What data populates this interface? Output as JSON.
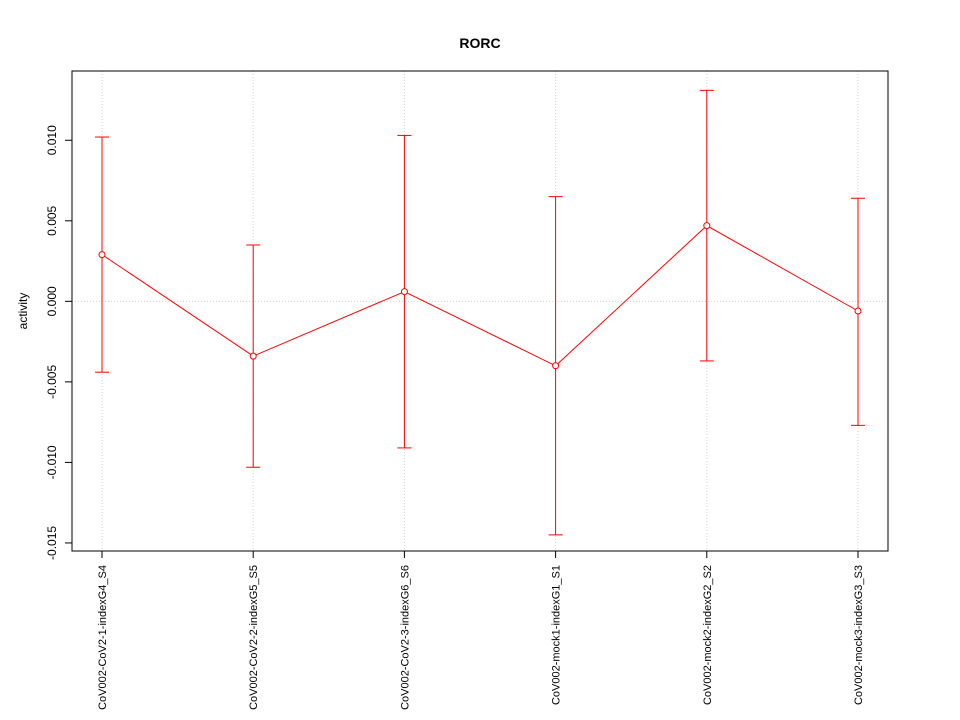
{
  "chart_data": {
    "type": "line",
    "title": "RORC",
    "xlabel": "",
    "ylabel": "activity",
    "categories": [
      "CoV002-CoV2-1-indexG4_S4",
      "CoV002-CoV2-2-indexG5_S5",
      "CoV002-CoV2-3-indexG6_S6",
      "CoV002-mock1-indexG1_S1",
      "CoV002-mock2-indexG2_S2",
      "CoV002-mock3-indexG3_S3"
    ],
    "series": [
      {
        "values": [
          0.0029,
          -0.0034,
          0.0006,
          -0.004,
          0.0047,
          -0.0006
        ],
        "lower": [
          -0.0044,
          -0.0103,
          -0.0091,
          -0.0145,
          -0.0037,
          -0.0077
        ],
        "upper": [
          0.0102,
          0.0035,
          0.0103,
          0.0065,
          0.0131,
          0.0064
        ],
        "color": "#ff0000"
      }
    ],
    "yticks": [
      -0.015,
      -0.01,
      -0.005,
      0.0,
      0.005,
      0.01
    ],
    "ytick_labels": [
      "-0.015",
      "-0.010",
      "-0.005",
      "0.000",
      "0.005",
      "0.010"
    ],
    "ylim": [
      -0.0155,
      0.0143
    ],
    "grid": true,
    "grid_color": "#d3d3d3",
    "axis_color": "#000000"
  }
}
